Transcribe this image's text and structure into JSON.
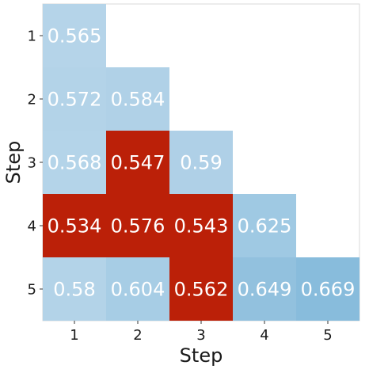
{
  "chart_data": {
    "type": "heatmap",
    "title": "",
    "xlabel": "Step",
    "ylabel": "Step",
    "x_categories": [
      "1",
      "2",
      "3",
      "4",
      "5"
    ],
    "y_categories": [
      "1",
      "2",
      "3",
      "4",
      "5"
    ],
    "highlight_color": "#bb2008",
    "cells": [
      {
        "x": "1",
        "y": "1",
        "value": 0.565,
        "label": "0.565",
        "highlight": false,
        "color": "#b5d4e9"
      },
      {
        "x": "1",
        "y": "2",
        "value": 0.572,
        "label": "0.572",
        "highlight": false,
        "color": "#b3d3e8"
      },
      {
        "x": "2",
        "y": "2",
        "value": 0.584,
        "label": "0.584",
        "highlight": false,
        "color": "#b0d1e7"
      },
      {
        "x": "1",
        "y": "3",
        "value": 0.568,
        "label": "0.568",
        "highlight": false,
        "color": "#b4d4e9"
      },
      {
        "x": "2",
        "y": "3",
        "value": 0.547,
        "label": "0.547",
        "highlight": true,
        "color": "#bb2008"
      },
      {
        "x": "3",
        "y": "3",
        "value": 0.59,
        "label": "0.59",
        "highlight": false,
        "color": "#afd0e7"
      },
      {
        "x": "1",
        "y": "4",
        "value": 0.534,
        "label": "0.534",
        "highlight": true,
        "color": "#bb2008"
      },
      {
        "x": "2",
        "y": "4",
        "value": 0.576,
        "label": "0.576",
        "highlight": true,
        "color": "#bb2008"
      },
      {
        "x": "3",
        "y": "4",
        "value": 0.543,
        "label": "0.543",
        "highlight": true,
        "color": "#bb2008"
      },
      {
        "x": "4",
        "y": "4",
        "value": 0.625,
        "label": "0.625",
        "highlight": false,
        "color": "#9fc9e3"
      },
      {
        "x": "1",
        "y": "5",
        "value": 0.58,
        "label": "0.58",
        "highlight": false,
        "color": "#b3d3e8"
      },
      {
        "x": "2",
        "y": "5",
        "value": 0.604,
        "label": "0.604",
        "highlight": false,
        "color": "#a7cde5"
      },
      {
        "x": "3",
        "y": "5",
        "value": 0.562,
        "label": "0.562",
        "highlight": true,
        "color": "#bb2008"
      },
      {
        "x": "4",
        "y": "5",
        "value": 0.649,
        "label": "0.649",
        "highlight": false,
        "color": "#92c1de"
      },
      {
        "x": "5",
        "y": "5",
        "value": 0.669,
        "label": "0.669",
        "highlight": false,
        "color": "#88bcdc"
      }
    ]
  }
}
